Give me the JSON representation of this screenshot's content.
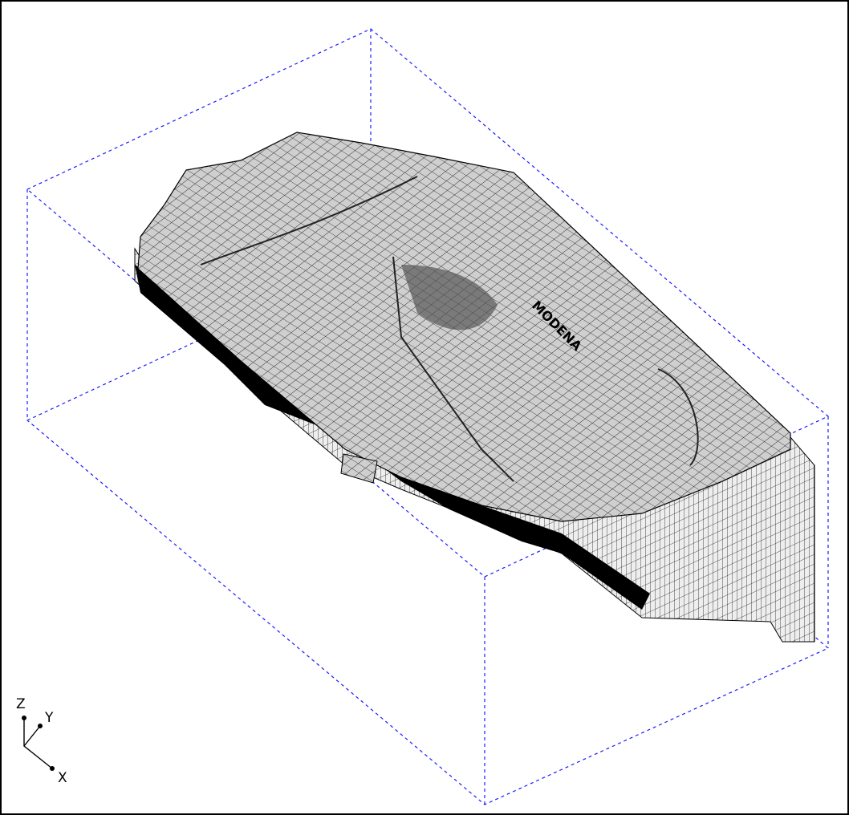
{
  "viewport": {
    "map_label": "MODENA",
    "ucs_icon": {
      "z": "Z",
      "y": "Y",
      "x": "X"
    }
  }
}
